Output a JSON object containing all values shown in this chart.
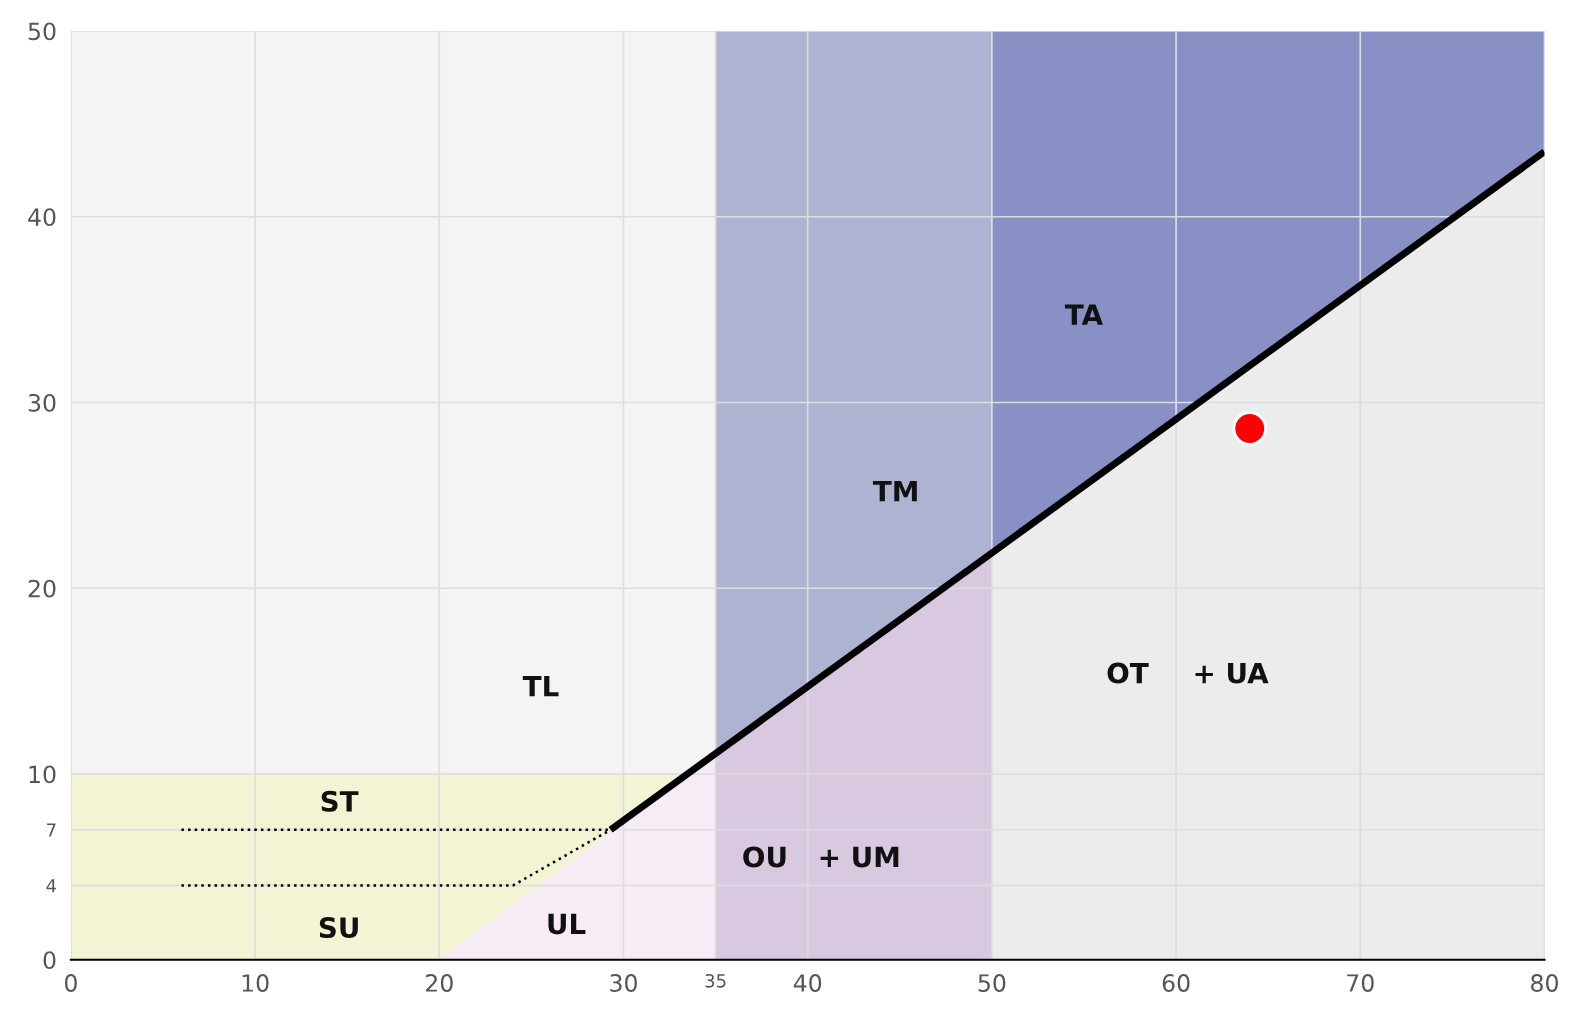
{
  "chart_data": {
    "type": "area",
    "xlim": [
      0,
      80
    ],
    "ylim": [
      0,
      50
    ],
    "xticks": [
      0,
      10,
      20,
      30,
      35,
      40,
      50,
      60,
      70,
      80
    ],
    "yticks": [
      0,
      4,
      7,
      10,
      20,
      30,
      40,
      50
    ],
    "grid": true,
    "legend": false,
    "bands": [
      {
        "axis": "y",
        "from": 0,
        "to": 10,
        "color": "#f3f4d4"
      },
      {
        "axis": "x",
        "from": 35,
        "to": 50,
        "color": "#adb3d1"
      },
      {
        "axis": "x",
        "from": 50,
        "to": 80,
        "color": "#8990c5"
      }
    ],
    "series": [
      {
        "color": "#f7ecf5",
        "x": [
          20,
          35
        ],
        "values": [
          0,
          11.1
        ]
      },
      {
        "color": "#d8c8e0",
        "x": [
          35,
          50
        ],
        "values": [
          11.1,
          21.9
        ]
      },
      {
        "color": "#ececec",
        "x": [
          50,
          80
        ],
        "values": [
          21.9,
          43.5
        ]
      },
      {
        "type": "line",
        "color": "#000000",
        "line_style": "solid",
        "marker": "none",
        "x": [
          29.3,
          80
        ],
        "values": [
          7,
          43.5
        ]
      },
      {
        "type": "line",
        "color": "#000000",
        "line_style": "dotted",
        "marker": "none",
        "x": [
          6,
          29.3
        ],
        "values": [
          7,
          7
        ]
      },
      {
        "type": "line",
        "color": "#000000",
        "line_style": "dotted",
        "marker": "none",
        "x": [
          6,
          24,
          29.3
        ],
        "values": [
          4,
          4,
          7
        ]
      },
      {
        "type": "scatter",
        "color": "#ff0000",
        "marker": "circle",
        "x": [
          64
        ],
        "values": [
          28.6
        ]
      }
    ],
    "annotations": [
      "TL",
      "ST",
      "SU",
      "UL",
      "TM",
      "TA",
      "OU",
      "+ UM",
      "OT",
      "+ UA"
    ]
  }
}
